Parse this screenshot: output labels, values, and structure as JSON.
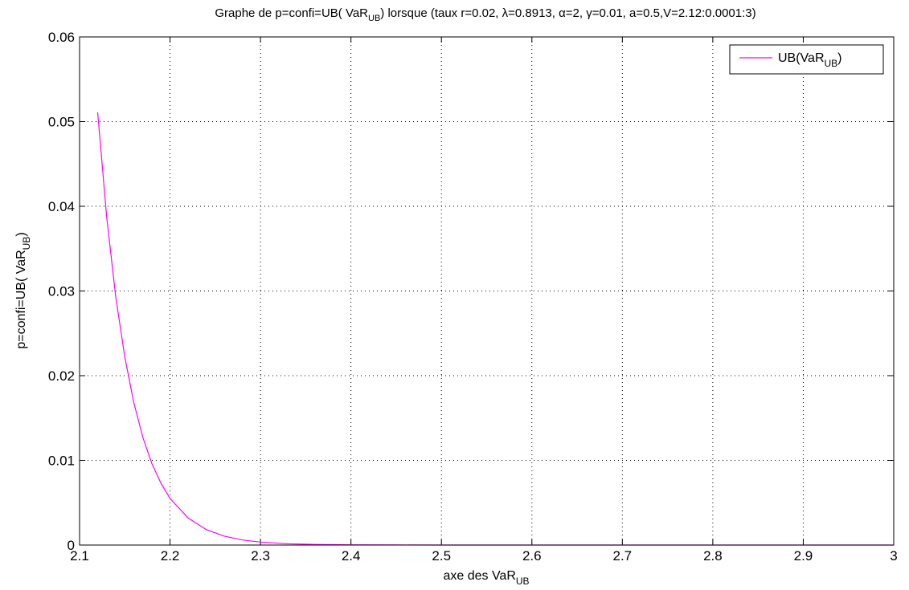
{
  "chart_data": {
    "type": "line",
    "title": {
      "part1": "Graphe de p=confi=UB( VaR",
      "sub": "UB",
      "part2": ") lorsque (taux r=0.02, λ=0.8913, α=2, γ=0.01, a=0.5,V=2.12:0.0001:3)"
    },
    "xlabel": {
      "main": "axe des VaR",
      "sub": "UB"
    },
    "ylabel": {
      "main": "p=confi=UB( VaR",
      "sub": "UB",
      "close": ")"
    },
    "xlim": [
      2.1,
      3.0
    ],
    "ylim": [
      0,
      0.06
    ],
    "xticks": [
      "2.1",
      "2.2",
      "2.3",
      "2.4",
      "2.5",
      "2.6",
      "2.7",
      "2.8",
      "2.9",
      "3"
    ],
    "yticks": [
      "0",
      "0.01",
      "0.02",
      "0.03",
      "0.04",
      "0.05",
      "0.06"
    ],
    "grid": true,
    "legend_position": "top-right",
    "series": [
      {
        "name": {
          "main": "UB(VaR",
          "sub": "UB",
          "close": ")"
        },
        "color": "#ff00ff",
        "x": [
          2.12,
          2.13,
          2.14,
          2.15,
          2.16,
          2.17,
          2.18,
          2.19,
          2.2,
          2.22,
          2.24,
          2.26,
          2.28,
          2.3,
          2.33,
          2.36,
          2.4,
          2.45,
          2.5,
          2.6,
          2.7,
          2.8,
          2.9,
          3.0
        ],
        "y": [
          0.0511,
          0.0387,
          0.0293,
          0.0222,
          0.0168,
          0.0127,
          0.0096,
          0.0073,
          0.0055,
          0.0032,
          0.00183,
          0.00105,
          0.0006,
          0.00035,
          0.00015,
          7e-05,
          3e-05,
          1e-05,
          3e-06,
          5e-07,
          0.0,
          0.0,
          0.0,
          0.0
        ]
      }
    ]
  }
}
